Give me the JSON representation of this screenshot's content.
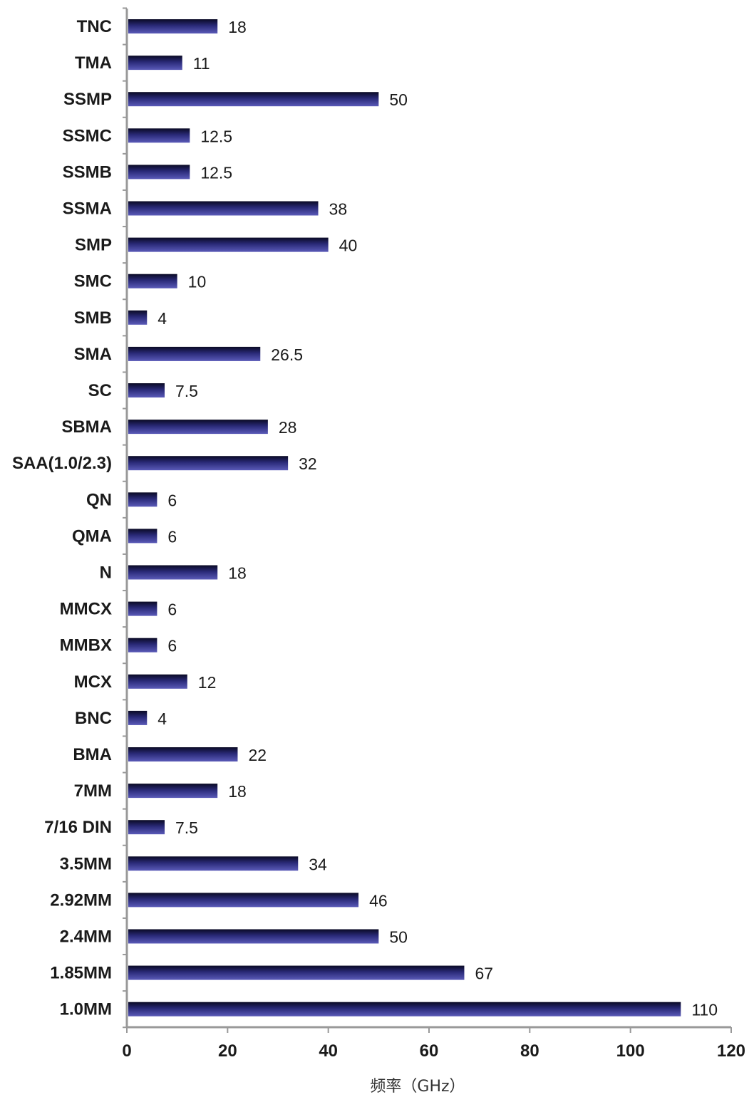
{
  "chart_data": {
    "type": "bar",
    "orientation": "horizontal",
    "categories": [
      "TNC",
      "TMA",
      "SSMP",
      "SSMC",
      "SSMB",
      "SSMA",
      "SMP",
      "SMC",
      "SMB",
      "SMA",
      "SC",
      "SBMA",
      "SAA(1.0/2.3)",
      "QN",
      "QMA",
      "N",
      "MMCX",
      "MMBX",
      "MCX",
      "BNC",
      "BMA",
      "7MM",
      "7/16 DIN",
      "3.5MM",
      "2.92MM",
      "2.4MM",
      "1.85MM",
      "1.0MM"
    ],
    "values": [
      18,
      11,
      50,
      12.5,
      12.5,
      38,
      40,
      10,
      4,
      26.5,
      7.5,
      28,
      32,
      6,
      6,
      18,
      6,
      6,
      12,
      4,
      22,
      18,
      7.5,
      34,
      46,
      50,
      67,
      110
    ],
    "value_labels": [
      "18",
      "11",
      "50",
      "12.5",
      "12.5",
      "38",
      "40",
      "10",
      "4",
      "26.5",
      "7.5",
      "28",
      "32",
      "6",
      "6",
      "18",
      "6",
      "6",
      "12",
      "4",
      "22",
      "18",
      "7.5",
      "34",
      "46",
      "50",
      "67",
      "110"
    ],
    "xlabel": "频率（GHz）",
    "ylabel": "",
    "title": "",
    "xlim": [
      0,
      120
    ],
    "xticks": [
      "0",
      "20",
      "40",
      "60",
      "80",
      "100",
      "120"
    ],
    "grid": false,
    "legend": "none",
    "colors": {
      "bar_dark": "#0a0a24",
      "bar_mid": "#2a2a78",
      "bar_light": "#5a5ab8",
      "axis": "#999999"
    }
  }
}
